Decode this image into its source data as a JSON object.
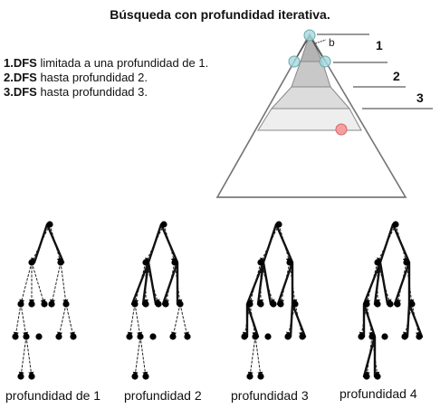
{
  "title": "Búsqueda con profundidad iterativa.",
  "steps": [
    {
      "num": "1.",
      "bold": "DFS",
      "text": " limitada a una profundidad de 1."
    },
    {
      "num": "2.",
      "bold": "DFS",
      "text": " hasta profundidad 2."
    },
    {
      "num": "3.",
      "bold": "DFS",
      "text": " hasta profundidad 3."
    }
  ],
  "pyramid": {
    "node_label": "b",
    "levels": [
      "1",
      "2",
      "3"
    ],
    "colors": {
      "band1": "#b4b4b4",
      "band2": "#c8c8c8",
      "band3": "#dcdcdc",
      "band4": "#eeeeee",
      "bottom": "#ffffff",
      "node_circle": "#a8d8e0",
      "goal_circle": "#f4a0a0"
    }
  },
  "captions": [
    "profundidad de 1",
    "profundidad 2",
    "profundidad 3",
    "profundidad  4"
  ]
}
